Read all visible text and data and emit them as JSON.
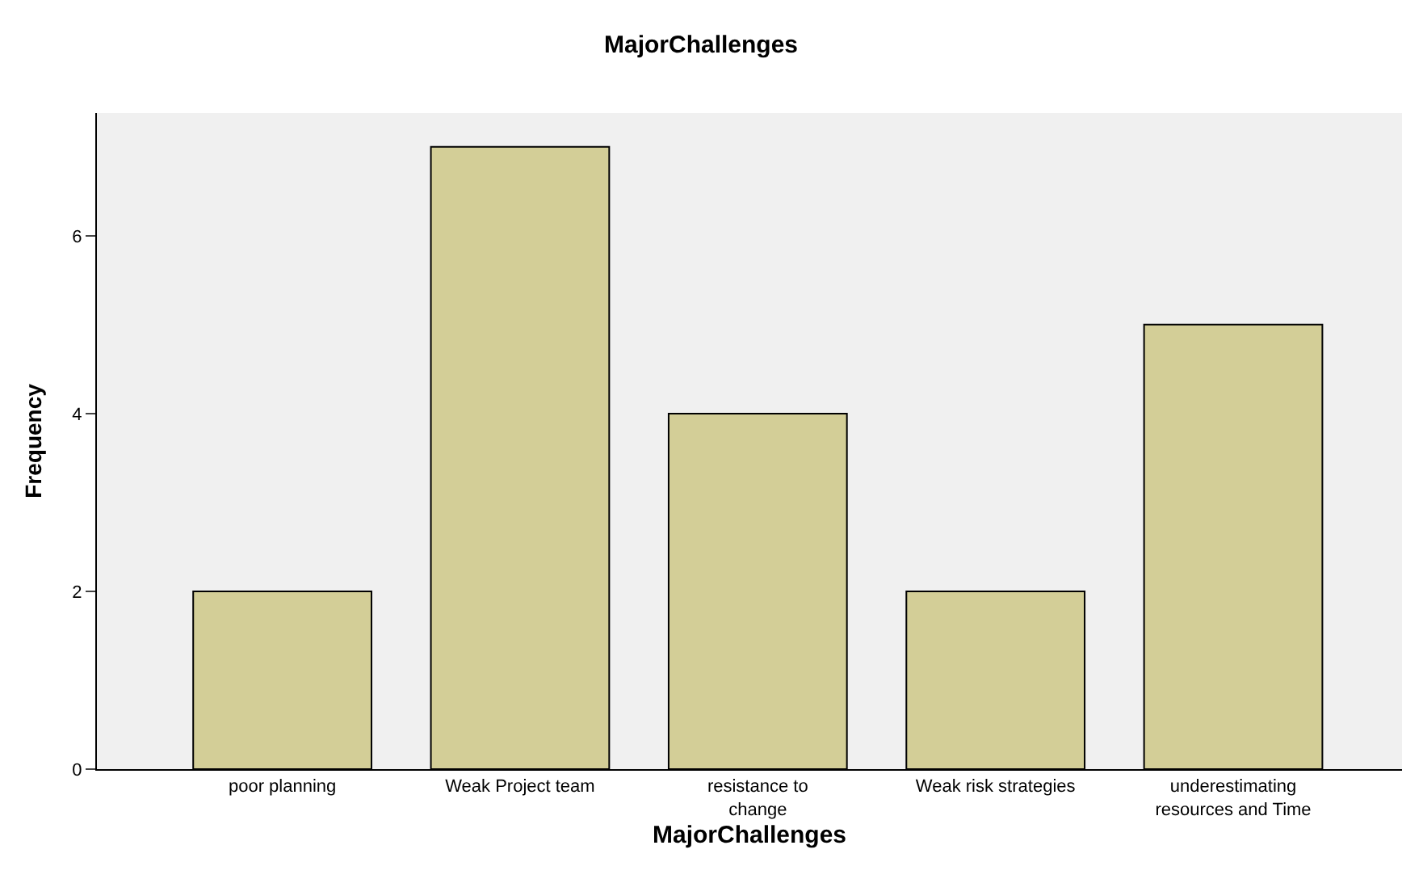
{
  "chart_data": {
    "type": "bar",
    "title": "MajorChallenges",
    "xlabel": "MajorChallenges",
    "ylabel": "Frequency",
    "categories": [
      "poor planning",
      "Weak Project team",
      "resistance to\nchange",
      "Weak risk strategies",
      "underestimating\nresources and Time"
    ],
    "values": [
      2,
      7,
      4,
      2,
      5
    ],
    "color": "#d3ce97",
    "ylim": [
      0,
      7.38
    ],
    "yticks": [
      0,
      2,
      4,
      6
    ],
    "grid": false
  }
}
